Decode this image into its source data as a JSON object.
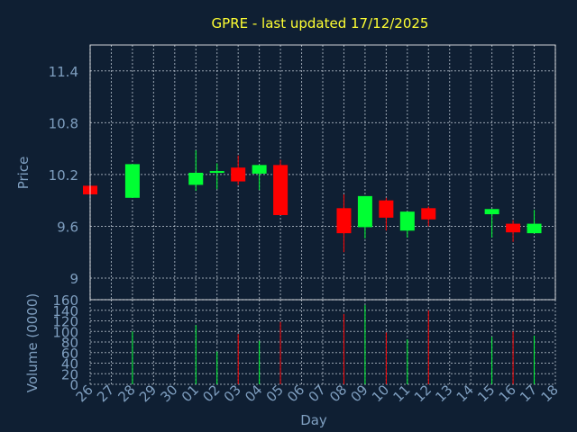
{
  "title": "GPRE - last updated 17/12/2025",
  "colors": {
    "background": "#0f1f33",
    "title": "#ffff33",
    "axis_text": "#7f9fc0",
    "grid": "#c8d2dc",
    "frame": "#ffffff",
    "up": "#00ff33",
    "down": "#ff0000"
  },
  "chart_data": [
    {
      "type": "candlestick",
      "ylabel": "Price",
      "ylim": [
        8.75,
        11.7
      ],
      "yticks": [
        9,
        9.6,
        10.2,
        10.8,
        11.4
      ],
      "ytick_labels": [
        "9",
        "9.6",
        "10.2",
        "10.8",
        "11.4"
      ],
      "x_labels": [
        "26",
        "27",
        "28",
        "29",
        "30",
        "01",
        "02",
        "03",
        "04",
        "05",
        "06",
        "07",
        "08",
        "09",
        "10",
        "11",
        "12",
        "13",
        "14",
        "15",
        "16",
        "17",
        "18"
      ],
      "grid": true,
      "candles": [
        {
          "day": "26",
          "open": 10.07,
          "close": 9.97,
          "high": 10.07,
          "low": 9.97
        },
        {
          "day": "28",
          "open": 9.93,
          "close": 10.32,
          "high": 10.32,
          "low": 9.93
        },
        {
          "day": "01",
          "open": 10.08,
          "close": 10.22,
          "high": 10.48,
          "low": 10.01
        },
        {
          "day": "02",
          "open": 10.22,
          "close": 10.24,
          "high": 10.33,
          "low": 10.03
        },
        {
          "day": "03",
          "open": 10.28,
          "close": 10.12,
          "high": 10.42,
          "low": 10.08
        },
        {
          "day": "04",
          "open": 10.21,
          "close": 10.31,
          "high": 10.31,
          "low": 10.02
        },
        {
          "day": "05",
          "open": 10.31,
          "close": 9.73,
          "high": 10.37,
          "low": 9.73
        },
        {
          "day": "08",
          "open": 9.81,
          "close": 9.52,
          "high": 9.97,
          "low": 9.3
        },
        {
          "day": "09",
          "open": 9.59,
          "close": 9.95,
          "high": 9.95,
          "low": 9.46
        },
        {
          "day": "10",
          "open": 9.9,
          "close": 9.7,
          "high": 9.93,
          "low": 9.55
        },
        {
          "day": "11",
          "open": 9.55,
          "close": 9.77,
          "high": 9.77,
          "low": 9.47
        },
        {
          "day": "12",
          "open": 9.81,
          "close": 9.68,
          "high": 9.83,
          "low": 9.6
        },
        {
          "day": "15",
          "open": 9.74,
          "close": 9.8,
          "high": 9.8,
          "low": 9.47
        },
        {
          "day": "16",
          "open": 9.63,
          "close": 9.53,
          "high": 9.67,
          "low": 9.42
        },
        {
          "day": "17",
          "open": 9.52,
          "close": 9.63,
          "high": 9.79,
          "low": 9.52
        }
      ]
    },
    {
      "type": "bar",
      "ylabel": "Volume (0000)",
      "xlabel": "Day",
      "ylim": [
        0,
        160
      ],
      "yticks": [
        0,
        20,
        40,
        60,
        80,
        100,
        120,
        140,
        160
      ],
      "x_labels": [
        "26",
        "27",
        "28",
        "29",
        "30",
        "01",
        "02",
        "03",
        "04",
        "05",
        "06",
        "07",
        "08",
        "09",
        "10",
        "11",
        "12",
        "13",
        "14",
        "15",
        "16",
        "17",
        "18"
      ],
      "grid": true,
      "bars": [
        {
          "day": "28",
          "value": 100,
          "direction": "up"
        },
        {
          "day": "01",
          "value": 112,
          "direction": "up"
        },
        {
          "day": "02",
          "value": 62,
          "direction": "up"
        },
        {
          "day": "03",
          "value": 95,
          "direction": "down"
        },
        {
          "day": "04",
          "value": 82,
          "direction": "up"
        },
        {
          "day": "05",
          "value": 118,
          "direction": "down"
        },
        {
          "day": "08",
          "value": 133,
          "direction": "down"
        },
        {
          "day": "09",
          "value": 150,
          "direction": "up"
        },
        {
          "day": "10",
          "value": 98,
          "direction": "down"
        },
        {
          "day": "11",
          "value": 85,
          "direction": "up"
        },
        {
          "day": "12",
          "value": 140,
          "direction": "down"
        },
        {
          "day": "15",
          "value": 90,
          "direction": "up"
        },
        {
          "day": "16",
          "value": 100,
          "direction": "down"
        },
        {
          "day": "17",
          "value": 92,
          "direction": "up"
        }
      ]
    }
  ]
}
